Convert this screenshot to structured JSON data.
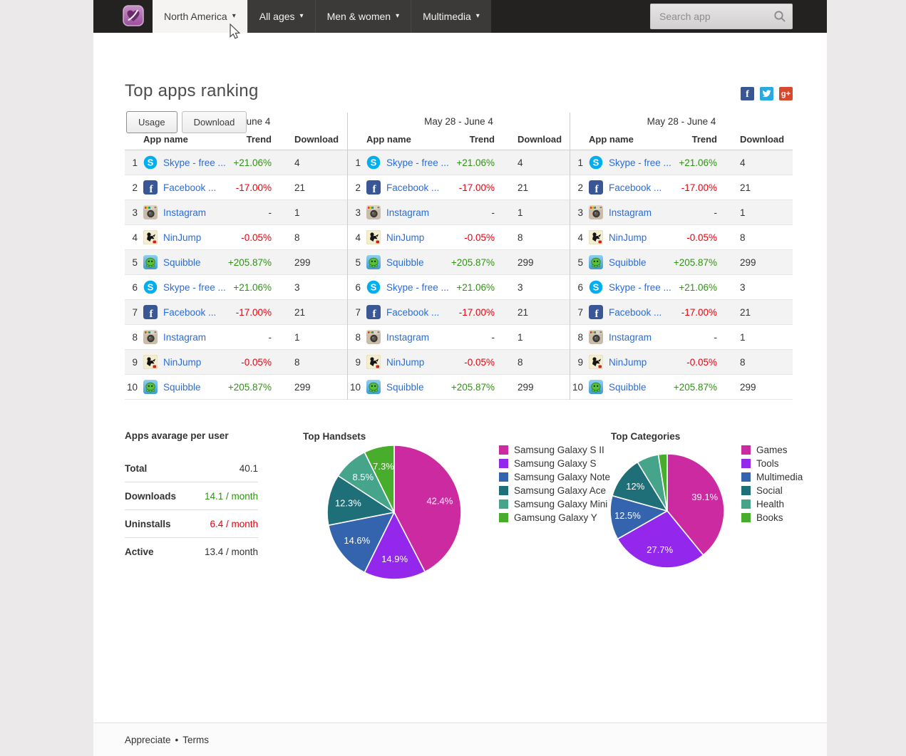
{
  "nav": {
    "logo_icon": "heart-app-logo",
    "dropdowns": [
      {
        "label": "North America",
        "active": true
      },
      {
        "label": "All ages",
        "active": false
      },
      {
        "label": "Men & women",
        "active": false
      },
      {
        "label": "Multimedia",
        "active": false
      }
    ],
    "search": {
      "placeholder": "Search app",
      "icon": "search-icon"
    }
  },
  "header": {
    "title": "Top apps ranking",
    "social_icons": [
      "facebook",
      "twitter",
      "googleplus"
    ],
    "tabs": [
      {
        "label": "Usage",
        "active": true
      },
      {
        "label": "Download",
        "active": false
      }
    ]
  },
  "ranking": {
    "period": "May 28 - June 4",
    "table_count": 3,
    "columns": {
      "app": "App name",
      "trend": "Trend",
      "download": "Download"
    },
    "rows": [
      {
        "rank": "1",
        "icon": "skype",
        "name": "Skype - free ...",
        "trend": "+21.06%",
        "trend_dir": "up",
        "download": "4"
      },
      {
        "rank": "2",
        "icon": "facebook",
        "name": "Facebook ...",
        "trend": "-17.00%",
        "trend_dir": "down",
        "download": "21"
      },
      {
        "rank": "3",
        "icon": "instagram",
        "name": "Instagram",
        "trend": "-",
        "trend_dir": "flat",
        "download": "1"
      },
      {
        "rank": "4",
        "icon": "ninjump",
        "name": "NinJump",
        "trend": "-0.05%",
        "trend_dir": "down",
        "download": "8"
      },
      {
        "rank": "5",
        "icon": "squibble",
        "name": "Squibble",
        "trend": "+205.87%",
        "trend_dir": "up",
        "download": "299"
      },
      {
        "rank": "6",
        "icon": "skype",
        "name": "Skype - free ...",
        "trend": "+21.06%",
        "trend_dir": "up",
        "download": "3"
      },
      {
        "rank": "7",
        "icon": "facebook",
        "name": "Facebook ...",
        "trend": "-17.00%",
        "trend_dir": "down",
        "download": "21"
      },
      {
        "rank": "8",
        "icon": "instagram",
        "name": "Instagram",
        "trend": "-",
        "trend_dir": "flat",
        "download": "1"
      },
      {
        "rank": "9",
        "icon": "ninjump",
        "name": "NinJump",
        "trend": "-0.05%",
        "trend_dir": "down",
        "download": "8"
      },
      {
        "rank": "10",
        "icon": "squibble",
        "name": "Squibble",
        "trend": "+205.87%",
        "trend_dir": "up",
        "download": "299"
      }
    ]
  },
  "stats": {
    "title": "Apps avarage per user",
    "rows": [
      {
        "label": "Total",
        "value": "40.1",
        "color": "dark"
      },
      {
        "label": "Downloads",
        "value": "14.1 / month",
        "color": "green"
      },
      {
        "label": "Uninstalls",
        "value": "6.4 / month",
        "color": "red"
      },
      {
        "label": "Active",
        "value": "13.4 / month",
        "color": "dark"
      }
    ]
  },
  "chart_data": [
    {
      "type": "pie",
      "title": "Top Handsets",
      "labels": [
        "Samsung Galaxy S II",
        "Samsung Galaxy S",
        "Samsung Galaxy Note",
        "Samsung Galaxy Ace",
        "Samsung Galaxy Mini",
        "Gamsung Galaxy Y"
      ],
      "values": [
        42.4,
        14.9,
        14.6,
        12.3,
        8.5,
        7.3
      ],
      "slice_labels": [
        "42.4%",
        "14.9%",
        "14.6%",
        "12.3%",
        "8.5%",
        "7.3%"
      ],
      "colors": [
        "#cb2aa0",
        "#9327ec",
        "#3464ae",
        "#1e6f78",
        "#45a489",
        "#48ac2c"
      ],
      "start_angle": "top",
      "direction": "clockwise",
      "legend_position": "right"
    },
    {
      "type": "pie",
      "title": "Top Categories",
      "labels": [
        "Games",
        "Tools",
        "Multimedia",
        "Social",
        "Health",
        "Books"
      ],
      "values": [
        39.1,
        27.7,
        12.5,
        12,
        6.2,
        2.5
      ],
      "slice_labels": [
        "39.1%",
        "27.7%",
        "12.5%",
        "12%",
        "",
        ""
      ],
      "colors": [
        "#cb2aa0",
        "#9327ec",
        "#3464ae",
        "#1e6f78",
        "#45a489",
        "#48ac2c"
      ],
      "start_angle": "top",
      "direction": "clockwise",
      "legend_position": "right"
    }
  ],
  "colors": {
    "positive": "#2f9313",
    "negative": "#e8000d",
    "neutral": "#333333",
    "link": "#2b6dd8",
    "nav_bg": "#242121",
    "nav_item_bg": "#3c3939",
    "nav_active_bg": "#f6f4f3"
  },
  "footer": {
    "links": [
      "Appreciate",
      "Terms"
    ],
    "separator": "•"
  }
}
